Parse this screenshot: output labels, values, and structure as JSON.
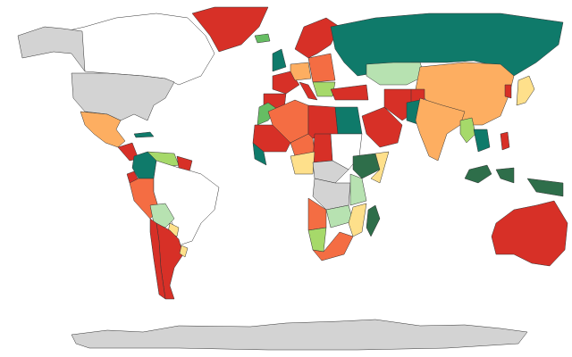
{
  "map": {
    "type": "choropleth",
    "palette": [
      "#d73027",
      "#f46d43",
      "#fdae61",
      "#fee08b",
      "#a6d96a",
      "#b7e2b1",
      "#66bd63",
      "#2e6e4a",
      "#0f7a6a",
      "#d3d3d3",
      "#ffffff"
    ]
  }
}
